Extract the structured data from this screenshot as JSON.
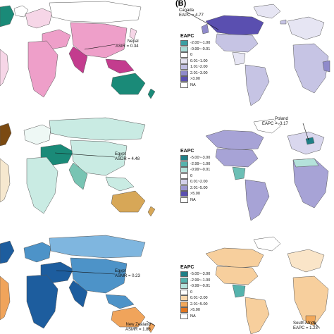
{
  "panel_label": "(B)",
  "left_maps": [
    {
      "id": "asir",
      "callouts": [
        {
          "id": "nepal",
          "country": "Nepal",
          "metric": "ASIR = 0.34"
        }
      ]
    },
    {
      "id": "asdr",
      "callouts": [
        {
          "id": "egypt",
          "country": "Egypt",
          "metric": "ASDR = 4.48"
        }
      ]
    },
    {
      "id": "asmr",
      "callouts": [
        {
          "id": "egypt",
          "country": "Egypt",
          "metric": "ASMR = 0.23"
        },
        {
          "id": "nz",
          "country": "New Zealand",
          "metric": "ASMR = 1.88"
        }
      ]
    }
  ],
  "right_maps": [
    {
      "id": "eapc-1",
      "callout": {
        "country": "Canada",
        "metric": "EAPC = 4.77"
      },
      "legend": {
        "title": "EAPC",
        "items": [
          {
            "label": "-2.00~-1.00",
            "color": "#3b9ea2"
          },
          {
            "label": "-0.99~-0.01",
            "color": "#a9dbd6"
          },
          {
            "label": "0",
            "color": "#ffffff"
          },
          {
            "label": "0.01~1.00",
            "color": "#e4e2f0"
          },
          {
            "label": "1.01~2.00",
            "color": "#bfbde0"
          },
          {
            "label": "2.01~3.00",
            "color": "#8f8acb"
          },
          {
            "label": ">3.00",
            "color": "#5a4fb0"
          },
          {
            "label": "NA",
            "color": "#ffffff"
          }
        ]
      }
    },
    {
      "id": "eapc-2",
      "callout": {
        "country": "Poland",
        "metric": "EAPC = -3.17"
      },
      "legend": {
        "title": "EAPC",
        "items": [
          {
            "label": "-5.00~-3.00",
            "color": "#1f7f86"
          },
          {
            "label": "-2.99~-1.00",
            "color": "#55b3ad"
          },
          {
            "label": "-0.99~-0.01",
            "color": "#b4e2db"
          },
          {
            "label": "0",
            "color": "#ffffff"
          },
          {
            "label": "0.01~2.00",
            "color": "#d3d0ea"
          },
          {
            "label": "2.01~5.00",
            "color": "#9a95cf"
          },
          {
            "label": ">5.00",
            "color": "#5a4fb0"
          },
          {
            "label": "NA",
            "color": "#ffffff"
          }
        ]
      }
    },
    {
      "id": "eapc-3",
      "callout": {
        "country": "South Africa",
        "metric": "EAPC = 1.23"
      },
      "legend": {
        "title": "EAPC",
        "items": [
          {
            "label": "-5.00~-3.00",
            "color": "#1f7f86"
          },
          {
            "label": "-2.99~-1.00",
            "color": "#55b3ad"
          },
          {
            "label": "-0.99~-0.01",
            "color": "#b4e2db"
          },
          {
            "label": "0",
            "color": "#ffffff"
          },
          {
            "label": "0.01~2.00",
            "color": "#f8d6aa"
          },
          {
            "label": "2.01~5.00",
            "color": "#f2a85a"
          },
          {
            "label": ">5.00",
            "color": "#e0761f"
          },
          {
            "label": "NA",
            "color": "#ffffff"
          }
        ]
      }
    }
  ],
  "palette": {
    "asir": {
      "ocean": "#ffffff",
      "main": "#ee9fc9",
      "dark": "#c33c8e",
      "teal": "#1a8a78",
      "light": "#f6d6e7",
      "border": "#555555"
    },
    "asdr": {
      "ocean": "#ffffff",
      "main": "#c9ebe3",
      "dark": "#7b4a12",
      "teal": "#78c4b3",
      "light": "#eef8f5",
      "accent": "#d7a757",
      "border": "#555555"
    },
    "asmr": {
      "ocean": "#ffffff",
      "main": "#7fb6df",
      "dark": "#1d5d9e",
      "teal": "#4d93c8",
      "light": "#b9d8ee",
      "accent": "#f0a45b",
      "border": "#555555"
    },
    "eapc1": {
      "main": "#c6c4e4",
      "dark": "#5a4fb0",
      "light": "#e6e5f3"
    },
    "eapc2": {
      "main": "#a7a3d6",
      "dark": "#5a4fb0",
      "light": "#d9d7ee",
      "teal": "#6cbfb5"
    },
    "eapc3": {
      "main": "#f7cf9d",
      "dark": "#e0761f",
      "light": "#fae5c8",
      "teal": "#55b3ad"
    }
  }
}
